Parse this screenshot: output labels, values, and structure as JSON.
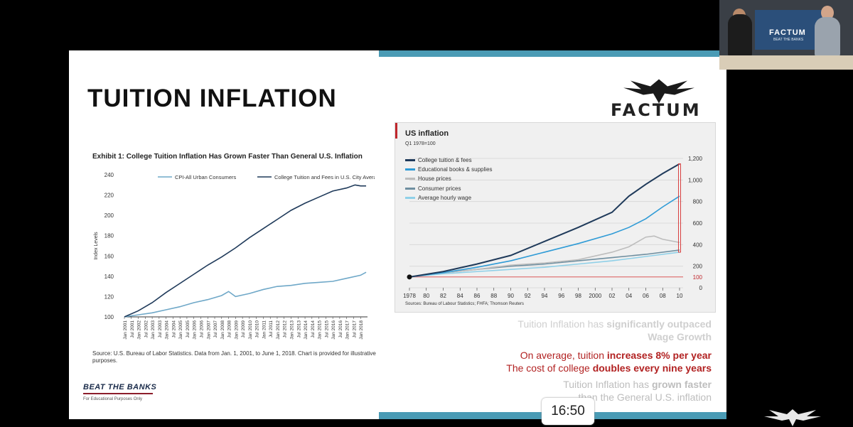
{
  "slide": {
    "title": "TUITION INFLATION",
    "exhibit": {
      "title": "Exhibit 1: College Tuition Inflation Has Grown Faster Than General U.S. Inflation",
      "source": "Source: U.S. Bureau of Labor Statistics. Data from Jan. 1, 2001, to June 1, 2018. Chart is provided for illustrative purposes."
    },
    "btb_logo": "BEAT THE BANKS",
    "btb_footer": "For Educational Purposes Only",
    "factum_logo": "FACTUM",
    "captions": {
      "line1_pre": "Tuition Inflation has ",
      "line1_bold": "significantly outpaced",
      "line1_post": "Wage Growth",
      "line2_pre": "On average, tuition ",
      "line2_bold": "increases 8% per year",
      "line3_pre": "The cost of college ",
      "line3_bold": "doubles every nine years",
      "line4_pre": "Tuition Inflation has ",
      "line4_bold": "grown faster",
      "line4_post": "than the General U.S. inflation"
    }
  },
  "webcam": {
    "logo": "FACTUM",
    "sub": "BEAT THE BANKS"
  },
  "timer": "16:50",
  "colors": {
    "accent_bar": "#4a9bb5",
    "tuition_dark": "#1f3a5a",
    "cpi_light": "#6fa8c8",
    "red": "#b22222"
  },
  "chart_data": [
    {
      "type": "line",
      "title": "Exhibit 1: College Tuition Inflation Has Grown Faster Than General U.S. Inflation",
      "ylabel": "Index Levels",
      "xlabel": "",
      "ylim": [
        100,
        240
      ],
      "yticks": [
        100,
        120,
        140,
        160,
        180,
        200,
        220,
        240
      ],
      "xticks": [
        "Jan 2001",
        "Jul 2001",
        "Jan 2002",
        "Jul 2002",
        "Jan 2003",
        "Jul 2003",
        "Jan 2004",
        "Jul 2004",
        "Jan 2005",
        "Jul 2005",
        "Jan 2006",
        "Jul 2006",
        "Jan 2007",
        "Jul 2007",
        "Jan 2008",
        "Jul 2008",
        "Jan 2009",
        "Jul 2009",
        "Jan 2010",
        "Jul 2010",
        "Jan 2011",
        "Jul 2011",
        "Jan 2012",
        "Jul 2012",
        "Jan 2013",
        "Jul 2013",
        "Jan 2014",
        "Jul 2014",
        "Jan 2015",
        "Jul 2015",
        "Jan 2016",
        "Jul 2016",
        "Jan 2017",
        "Jul 2017",
        "Jan 2018"
      ],
      "legend": "top",
      "grid": false,
      "series": [
        {
          "name": "CPI-All Urban Consumers",
          "color": "#6fa8c8",
          "x": [
            2001,
            2002,
            2003,
            2004,
            2005,
            2006,
            2007,
            2008,
            2008.5,
            2009,
            2010,
            2011,
            2012,
            2013,
            2014,
            2015,
            2016,
            2017,
            2018,
            2018.4
          ],
          "y": [
            100,
            102,
            104,
            107,
            110,
            114,
            117,
            121,
            125,
            120,
            123,
            127,
            130,
            131,
            133,
            134,
            135,
            138,
            141,
            144
          ]
        },
        {
          "name": "College Tuition and Fees in U.S. City Average",
          "color": "#1f3a5a",
          "x": [
            2001,
            2002,
            2003,
            2004,
            2005,
            2006,
            2007,
            2008,
            2009,
            2010,
            2011,
            2012,
            2013,
            2014,
            2015,
            2016,
            2017,
            2017.6,
            2018,
            2018.4
          ],
          "y": [
            100,
            106,
            114,
            124,
            133,
            142,
            151,
            159,
            168,
            178,
            187,
            196,
            205,
            212,
            218,
            224,
            227,
            230,
            229,
            229
          ]
        }
      ]
    },
    {
      "type": "line",
      "title": "US inflation",
      "subtitle": "Q1 1978=100",
      "source": "Sources: Bureau of Labour Statistics; FHFA; Thomson Reuters",
      "ylim": [
        0,
        1200
      ],
      "yticks": [
        0,
        100,
        200,
        400,
        600,
        800,
        "1,000",
        "1,200"
      ],
      "xticks": [
        "1978",
        "80",
        "82",
        "84",
        "86",
        "88",
        "90",
        "92",
        "94",
        "96",
        "98",
        "2000",
        "02",
        "04",
        "06",
        "08",
        "10"
      ],
      "legend": "top-left",
      "grid": true,
      "series": [
        {
          "name": "College tuition & fees",
          "color": "#1f3a5a",
          "x": [
            1978,
            1982,
            1986,
            1990,
            1994,
            1998,
            2002,
            2004,
            2006,
            2008,
            2010
          ],
          "y": [
            100,
            150,
            220,
            300,
            430,
            560,
            700,
            850,
            960,
            1060,
            1150
          ]
        },
        {
          "name": "Educational books & supplies",
          "color": "#2f9bd6",
          "x": [
            1978,
            1982,
            1986,
            1990,
            1994,
            1998,
            2002,
            2004,
            2006,
            2008,
            2010
          ],
          "y": [
            100,
            140,
            190,
            250,
            330,
            410,
            500,
            560,
            640,
            750,
            850
          ]
        },
        {
          "name": "House prices",
          "color": "#bdbdbd",
          "x": [
            1978,
            1982,
            1986,
            1990,
            1994,
            1998,
            2002,
            2004,
            2006,
            2007,
            2008,
            2010
          ],
          "y": [
            100,
            140,
            170,
            210,
            230,
            260,
            330,
            380,
            470,
            480,
            450,
            420
          ]
        },
        {
          "name": "Consumer prices",
          "color": "#6f8fa0",
          "x": [
            1978,
            1982,
            1986,
            1990,
            1994,
            1998,
            2002,
            2006,
            2010
          ],
          "y": [
            100,
            140,
            170,
            200,
            220,
            250,
            280,
            310,
            350
          ]
        },
        {
          "name": "Average hourly wage",
          "color": "#8fd0e8",
          "x": [
            1978,
            1982,
            1986,
            1990,
            1994,
            1998,
            2002,
            2006,
            2010
          ],
          "y": [
            100,
            130,
            150,
            170,
            190,
            220,
            250,
            290,
            330
          ]
        }
      ]
    }
  ]
}
